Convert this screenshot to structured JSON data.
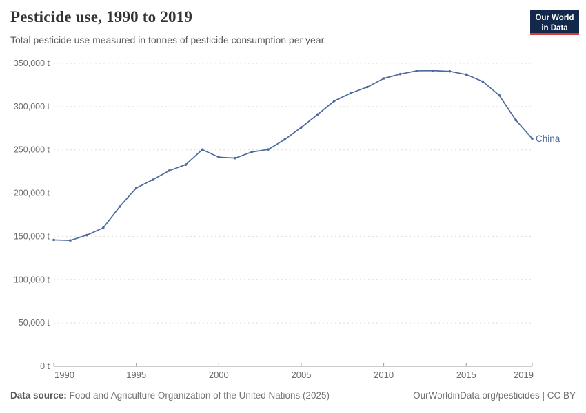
{
  "header": {
    "title": "Pesticide use, 1990 to 2019",
    "subtitle": "Total pesticide use measured in tonnes of pesticide consumption per year."
  },
  "logo": {
    "line1": "Our World",
    "line2": "in Data"
  },
  "chart_data": {
    "type": "line",
    "title": "Pesticide use, 1990 to 2019",
    "unit": "tonnes",
    "xlabel": "",
    "ylabel": "",
    "xlim": [
      1990,
      2019
    ],
    "ylim": [
      0,
      350000
    ],
    "grid": "horizontal dashed",
    "legend_position": "end-of-line label",
    "x": [
      1990,
      1991,
      1992,
      1993,
      1994,
      1995,
      1996,
      1997,
      1998,
      1999,
      2000,
      2001,
      2002,
      2003,
      2004,
      2005,
      2006,
      2007,
      2008,
      2009,
      2010,
      2011,
      2012,
      2013,
      2014,
      2015,
      2016,
      2017,
      2018,
      2019
    ],
    "series": [
      {
        "name": "China",
        "values": [
          146000,
          145400,
          151500,
          160000,
          184500,
          206000,
          215500,
          226000,
          233000,
          250300,
          241500,
          240500,
          247500,
          250500,
          262000,
          276000,
          291000,
          306500,
          315500,
          322500,
          332500,
          337500,
          341300,
          341500,
          340700,
          337000,
          329000,
          313000,
          284500,
          263000
        ]
      }
    ],
    "y_ticks": [
      {
        "value": 0,
        "label": "0 t"
      },
      {
        "value": 50000,
        "label": "50,000 t"
      },
      {
        "value": 100000,
        "label": "100,000 t"
      },
      {
        "value": 150000,
        "label": "150,000 t"
      },
      {
        "value": 200000,
        "label": "200,000 t"
      },
      {
        "value": 250000,
        "label": "250,000 t"
      },
      {
        "value": 300000,
        "label": "300,000 t"
      },
      {
        "value": 350000,
        "label": "350,000 t"
      }
    ],
    "x_ticks": [
      {
        "value": 1990,
        "label": "1990"
      },
      {
        "value": 1995,
        "label": "1995"
      },
      {
        "value": 2000,
        "label": "2000"
      },
      {
        "value": 2005,
        "label": "2005"
      },
      {
        "value": 2010,
        "label": "2010"
      },
      {
        "value": 2015,
        "label": "2015"
      },
      {
        "value": 2019,
        "label": "2019"
      }
    ]
  },
  "footer": {
    "source_label": "Data source:",
    "source_text": " Food and Agriculture Organization of the United Nations (2025)",
    "credit": "OurWorldinData.org/pesticides | CC BY"
  },
  "colors": {
    "series_blue": "#4c6a9e",
    "grid": "#dddddd",
    "axis": "#9a9a9a",
    "tick_text": "#6b6b6b",
    "logo_bg": "#12294c",
    "logo_accent": "#dc3a2e"
  }
}
